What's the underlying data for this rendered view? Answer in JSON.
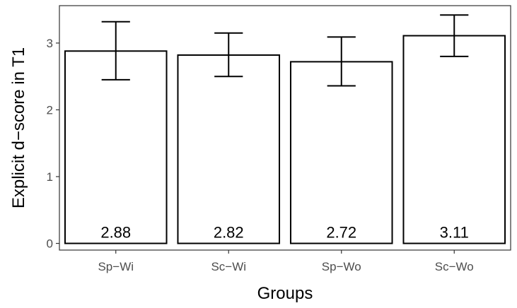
{
  "chart_data": {
    "type": "bar",
    "title": "",
    "xlabel": "Groups",
    "ylabel": "Explicit d−score in T1",
    "categories": [
      "Sp−Wi",
      "Sc−Wi",
      "Sp−Wo",
      "Sc−Wo"
    ],
    "values": [
      2.88,
      2.82,
      2.72,
      3.11
    ],
    "value_labels": [
      "2.88",
      "2.82",
      "2.72",
      "3.11"
    ],
    "error_low": [
      2.45,
      2.5,
      2.36,
      2.8
    ],
    "error_high": [
      3.32,
      3.15,
      3.09,
      3.42
    ],
    "yticks": [
      0,
      1,
      2,
      3
    ],
    "ytick_labels": [
      "0",
      "1",
      "2",
      "3"
    ],
    "ylim": [
      -0.1,
      3.56
    ],
    "grid": false,
    "legend": "none",
    "colors": {
      "bar_fill": "#ffffff",
      "bar_stroke": "#000000",
      "axis": "#333333"
    }
  }
}
